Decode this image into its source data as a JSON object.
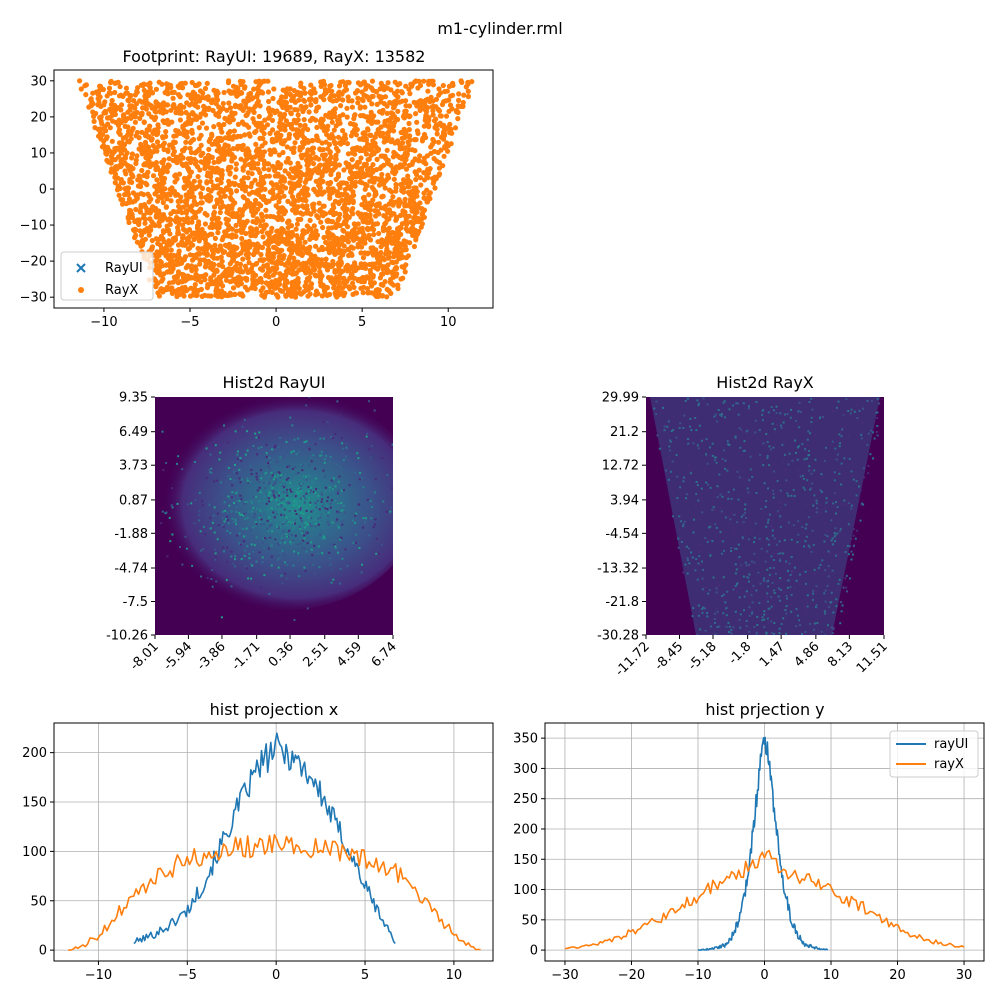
{
  "figure": {
    "suptitle": "m1-cylinder.rml"
  },
  "colors": {
    "rayui": "#1f77b4",
    "rayx": "#ff7f0e",
    "hist_bg": "#440154",
    "grid": "#b0b0b0"
  },
  "chart_data": [
    {
      "type": "scatter",
      "title": "Footprint: RayUI: 19689, RayX: 13582",
      "xlim": [
        -12.9,
        12.6
      ],
      "ylim": [
        -33,
        33
      ],
      "xticks": [
        -10,
        -5,
        0,
        5,
        10
      ],
      "yticks": [
        -30,
        -20,
        -10,
        0,
        10,
        20,
        30
      ],
      "grid": false,
      "legend": {
        "placement": "lower-left",
        "entries": [
          {
            "name": "RayUI",
            "marker": "x"
          },
          {
            "name": "RayX",
            "marker": "o"
          }
        ]
      },
      "series": [
        {
          "name": "RayUI",
          "marker": "x",
          "shape": "hidden beneath RayX points"
        },
        {
          "name": "RayX",
          "marker": "o",
          "shape": "trapezoid: |x| up to about 7 at y = -30, widening to about 11.5 at y = +30",
          "y_range": [
            -30,
            30
          ]
        }
      ]
    },
    {
      "type": "heatmap",
      "title": "Hist2d RayUI",
      "xticklabels": [
        "-8.01",
        "-5.94",
        "-3.86",
        "-1.71",
        "0.36",
        "2.51",
        "4.59",
        "6.74"
      ],
      "yticklabels": [
        "9.35",
        "6.49",
        "3.73",
        "0.87",
        "-1.88",
        "-4.74",
        "-7.5",
        "-10.26"
      ],
      "xlim": [
        -8.01,
        6.74
      ],
      "ylim": [
        -10.26,
        9.35
      ],
      "density": {
        "shape": "elliptical gaussian blob",
        "center": [
          0,
          0.5
        ],
        "peak_color": "#21908d"
      },
      "grid": false
    },
    {
      "type": "heatmap",
      "title": "Hist2d RayX",
      "xticklabels": [
        "-11.72",
        "-8.45",
        "-5.18",
        "-1.8",
        "1.47",
        "4.86",
        "8.13",
        "11.51"
      ],
      "yticklabels": [
        "29.99",
        "21.2",
        "12.72",
        "3.94",
        "-4.54",
        "-13.32",
        "-21.8",
        "-30.28"
      ],
      "xlim": [
        -11.72,
        11.51
      ],
      "ylim": [
        -30.28,
        29.99
      ],
      "density": {
        "shape": "uniform trapezoid, wider at the top",
        "peak_color": "#3b528b"
      },
      "grid": false
    },
    {
      "type": "line",
      "title": "hist projection x",
      "xlim": [
        -12.5,
        12.2
      ],
      "ylim": [
        -11,
        230
      ],
      "xticks": [
        -10,
        -5,
        0,
        5,
        10
      ],
      "yticks": [
        0,
        50,
        100,
        150,
        200
      ],
      "grid": true,
      "series": [
        {
          "name": "rayUI",
          "x": [
            -8,
            -7,
            -6,
            -5,
            -4,
            -3,
            -2,
            -1,
            0,
            1,
            2,
            3,
            4,
            5,
            6,
            6.7
          ],
          "y": [
            8,
            15,
            25,
            40,
            70,
            110,
            150,
            185,
            205,
            195,
            175,
            140,
            105,
            65,
            30,
            8
          ]
        },
        {
          "name": "rayX",
          "x": [
            -11.7,
            -11,
            -10,
            -9,
            -8,
            -7,
            -6,
            -5,
            -4,
            -3,
            -2,
            -1,
            0,
            1,
            2,
            3,
            4,
            5,
            6,
            7,
            8,
            9,
            10,
            11,
            11.5
          ],
          "y": [
            0,
            3,
            15,
            35,
            55,
            70,
            82,
            92,
            98,
            102,
            105,
            105,
            106,
            106,
            104,
            102,
            98,
            92,
            85,
            75,
            58,
            38,
            15,
            3,
            0
          ]
        }
      ]
    },
    {
      "type": "line",
      "title": "hist prjection y",
      "xlim": [
        -33,
        33
      ],
      "ylim": [
        -18,
        375
      ],
      "xticks": [
        -30,
        -20,
        -10,
        0,
        10,
        20,
        30
      ],
      "yticks": [
        0,
        50,
        100,
        150,
        200,
        250,
        300,
        350
      ],
      "grid": true,
      "legend": {
        "placement": "top-right",
        "entries": [
          "rayUI",
          "rayX"
        ]
      },
      "series": [
        {
          "name": "rayUI",
          "x": [
            -10,
            -8,
            -6,
            -5,
            -4,
            -3,
            -2,
            -1,
            -0.5,
            0,
            0.5,
            1,
            2,
            3,
            4,
            5,
            6,
            8,
            9.5
          ],
          "y": [
            0,
            2,
            8,
            20,
            45,
            90,
            170,
            270,
            320,
            345,
            330,
            280,
            180,
            100,
            50,
            25,
            10,
            3,
            1
          ]
        },
        {
          "name": "rayX",
          "x": [
            -30,
            -28,
            -25,
            -22,
            -20,
            -18,
            -15,
            -12,
            -10,
            -8,
            -6,
            -4,
            -2,
            -1,
            0,
            1,
            2,
            4,
            6,
            8,
            10,
            12,
            15,
            18,
            20,
            22,
            25,
            28,
            30
          ],
          "y": [
            3,
            5,
            10,
            20,
            30,
            40,
            55,
            75,
            90,
            105,
            115,
            125,
            140,
            150,
            165,
            150,
            140,
            125,
            118,
            110,
            100,
            85,
            70,
            50,
            38,
            25,
            15,
            8,
            5
          ]
        }
      ]
    }
  ]
}
